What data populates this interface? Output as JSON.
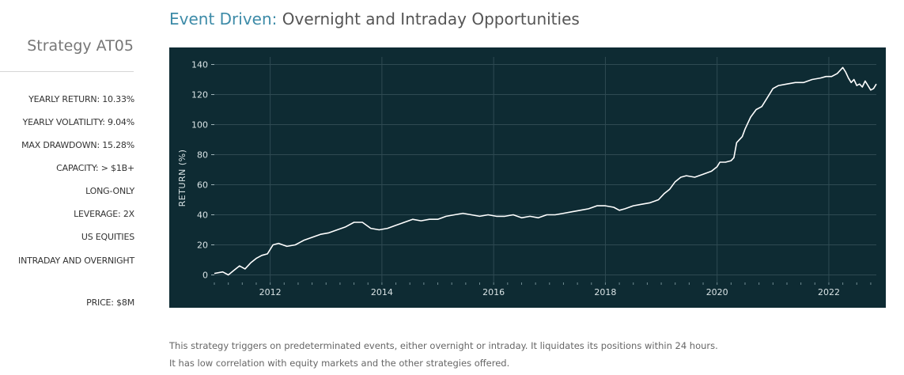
{
  "sidebar": {
    "strategy_name": "Strategy AT05",
    "stats": [
      "YEARLY RETURN: 10.33%",
      "YEARLY VOLATILITY: 9.04%",
      "MAX DRAWDOWN: 15.28%",
      "CAPACITY: > $1B+",
      "LONG-ONLY",
      "LEVERAGE: 2X",
      "US EQUITIES",
      "INTRADAY AND OVERNIGHT"
    ],
    "price": "PRICE: $8M"
  },
  "header": {
    "title_accent": "Event Driven:",
    "title_rest": " Overnight and Intraday Opportunities"
  },
  "colors": {
    "accent": "#3d8ba8",
    "chart_background": "#0e2b33",
    "line": "#ffffff",
    "grid": "#2f4a52"
  },
  "chart_data": {
    "type": "line",
    "ylabel": "RETURN (%)",
    "xlabel": "",
    "xlim": [
      2011.0,
      2022.85
    ],
    "ylim": [
      -5,
      145
    ],
    "xticks": [
      2012,
      2014,
      2016,
      2018,
      2020,
      2022
    ],
    "yticks": [
      0,
      20,
      40,
      60,
      80,
      100,
      120,
      140
    ],
    "grid": true,
    "series": [
      {
        "values": [
          [
            2011.0,
            1
          ],
          [
            2011.15,
            2
          ],
          [
            2011.25,
            0
          ],
          [
            2011.35,
            3
          ],
          [
            2011.45,
            6
          ],
          [
            2011.55,
            4
          ],
          [
            2011.65,
            8
          ],
          [
            2011.75,
            11
          ],
          [
            2011.85,
            13
          ],
          [
            2011.95,
            14
          ],
          [
            2012.05,
            20
          ],
          [
            2012.15,
            21
          ],
          [
            2012.3,
            19
          ],
          [
            2012.45,
            20
          ],
          [
            2012.6,
            23
          ],
          [
            2012.75,
            25
          ],
          [
            2012.9,
            27
          ],
          [
            2013.05,
            28
          ],
          [
            2013.2,
            30
          ],
          [
            2013.35,
            32
          ],
          [
            2013.5,
            35
          ],
          [
            2013.65,
            35
          ],
          [
            2013.8,
            31
          ],
          [
            2013.95,
            30
          ],
          [
            2014.1,
            31
          ],
          [
            2014.25,
            33
          ],
          [
            2014.4,
            35
          ],
          [
            2014.55,
            37
          ],
          [
            2014.7,
            36
          ],
          [
            2014.85,
            37
          ],
          [
            2015.0,
            37
          ],
          [
            2015.15,
            39
          ],
          [
            2015.3,
            40
          ],
          [
            2015.45,
            41
          ],
          [
            2015.6,
            40
          ],
          [
            2015.75,
            39
          ],
          [
            2015.9,
            40
          ],
          [
            2016.05,
            39
          ],
          [
            2016.2,
            39
          ],
          [
            2016.35,
            40
          ],
          [
            2016.5,
            38
          ],
          [
            2016.65,
            39
          ],
          [
            2016.8,
            38
          ],
          [
            2016.95,
            40
          ],
          [
            2017.1,
            40
          ],
          [
            2017.25,
            41
          ],
          [
            2017.4,
            42
          ],
          [
            2017.55,
            43
          ],
          [
            2017.7,
            44
          ],
          [
            2017.85,
            46
          ],
          [
            2018.0,
            46
          ],
          [
            2018.15,
            45
          ],
          [
            2018.25,
            43
          ],
          [
            2018.35,
            44
          ],
          [
            2018.5,
            46
          ],
          [
            2018.65,
            47
          ],
          [
            2018.8,
            48
          ],
          [
            2018.95,
            50
          ],
          [
            2019.05,
            54
          ],
          [
            2019.15,
            57
          ],
          [
            2019.25,
            62
          ],
          [
            2019.35,
            65
          ],
          [
            2019.45,
            66
          ],
          [
            2019.6,
            65
          ],
          [
            2019.75,
            67
          ],
          [
            2019.9,
            69
          ],
          [
            2020.0,
            72
          ],
          [
            2020.05,
            75
          ],
          [
            2020.15,
            75
          ],
          [
            2020.25,
            76
          ],
          [
            2020.3,
            78
          ],
          [
            2020.35,
            88
          ],
          [
            2020.45,
            92
          ],
          [
            2020.5,
            97
          ],
          [
            2020.6,
            105
          ],
          [
            2020.7,
            110
          ],
          [
            2020.8,
            112
          ],
          [
            2020.9,
            118
          ],
          [
            2021.0,
            124
          ],
          [
            2021.1,
            126
          ],
          [
            2021.25,
            127
          ],
          [
            2021.4,
            128
          ],
          [
            2021.55,
            128
          ],
          [
            2021.7,
            130
          ],
          [
            2021.85,
            131
          ],
          [
            2021.95,
            132
          ],
          [
            2022.05,
            132
          ],
          [
            2022.15,
            134
          ],
          [
            2022.25,
            138
          ],
          [
            2022.3,
            135
          ],
          [
            2022.35,
            131
          ],
          [
            2022.4,
            128
          ],
          [
            2022.45,
            130
          ],
          [
            2022.5,
            126
          ],
          [
            2022.55,
            127
          ],
          [
            2022.6,
            125
          ],
          [
            2022.65,
            129
          ],
          [
            2022.7,
            126
          ],
          [
            2022.75,
            123
          ],
          [
            2022.8,
            124
          ],
          [
            2022.85,
            127
          ]
        ]
      }
    ]
  },
  "description": {
    "line1": "This strategy triggers on predeterminated events, either overnight or intraday. It liquidates its positions within 24 hours.",
    "line2": "It has low correlation with equity markets and the other strategies offered."
  }
}
